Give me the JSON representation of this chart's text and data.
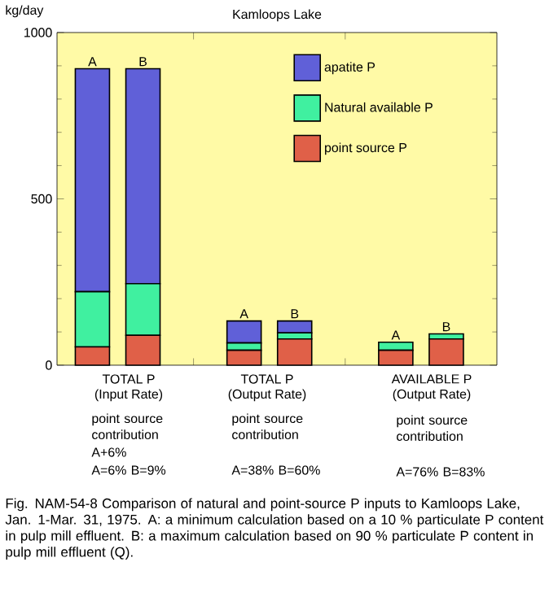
{
  "chart_data": {
    "type": "bar",
    "title": "Kamloops Lake",
    "ylabel": "kg/day",
    "stacked": true,
    "legend": "top right",
    "grid": false,
    "categories": [
      "A",
      "B",
      null,
      "A",
      "B",
      null,
      "A",
      "B"
    ],
    "series": [
      {
        "name": "point source P",
        "color": "#e06048",
        "values": [
          55,
          90,
          null,
          45,
          79,
          null,
          45,
          79
        ]
      },
      {
        "name": "Natural available P",
        "color": "#40f0a0",
        "values": [
          166,
          155,
          null,
          22,
          18,
          null,
          24,
          15
        ]
      },
      {
        "name": "apatite P",
        "color": "#6060d8",
        "values": [
          670,
          646,
          null,
          66,
          36,
          null,
          null,
          null
        ]
      }
    ],
    "ylim": [
      0,
      1000
    ],
    "yticks": [
      0,
      500,
      1000
    ],
    "annotations": [
      "TOTAL P",
      "(Input Rate)",
      "TOTAL P",
      "(Output Rate)",
      "AVAILABLE P",
      "(Output Rate)",
      "point source contribution",
      "A+6%",
      "A=6%  B=9%",
      "point source contribution",
      "A=38%  B=60%",
      "point source contribution",
      "A=76%  B=83%",
      "Fig. NAM-54-8  Comparison of natural and point-source P inputs to Kamloops Lake, Jan. 1-Mar. 31, 1975.  A:  a minimum calculation based on a 10 % particulate P content in pulp mill effluent.  B:  a maximum calculation based on 90 % particulate P content in pulp mill effluent (Q)."
    ]
  }
}
